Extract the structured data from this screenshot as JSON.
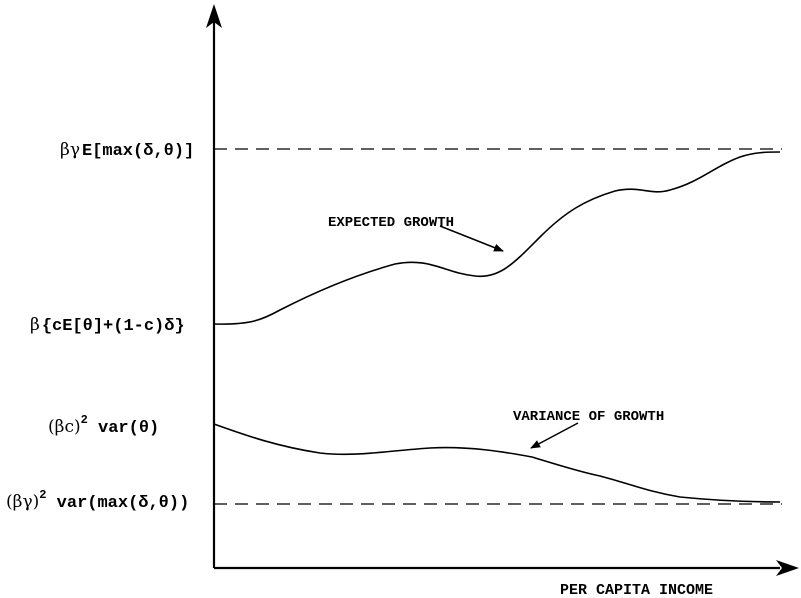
{
  "axes": {
    "x_label": "PER CAPITA INCOME"
  },
  "y_labels": {
    "upper_bound": {
      "prefix": "βγ",
      "text": "E[max(δ,θ)]"
    },
    "lower_start": {
      "prefix": "β",
      "text": "{cE[θ]+(1-c)δ}"
    },
    "variance_start": {
      "base": "(βc)",
      "sup": "2",
      "text": " var(θ)"
    },
    "variance_bound": {
      "base": "(βγ)",
      "sup": "2",
      "text": " var(max(δ,θ))"
    }
  },
  "annotations": {
    "expected_growth": "EXPECTED GROWTH",
    "variance_of_growth": "VARIANCE OF GROWTH"
  },
  "colors": {
    "ink": "#000000",
    "background": "#ffffff"
  }
}
